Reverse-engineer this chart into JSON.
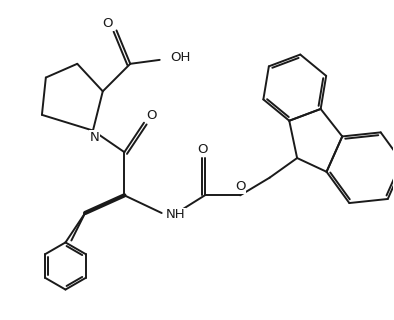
{
  "bg_color": "#ffffff",
  "line_color": "#1a1a1a",
  "line_width": 1.4,
  "font_size": 9.5,
  "figsize": [
    3.94,
    3.2
  ],
  "dpi": 100,
  "xlim": [
    0,
    10
  ],
  "ylim": [
    0,
    8
  ]
}
